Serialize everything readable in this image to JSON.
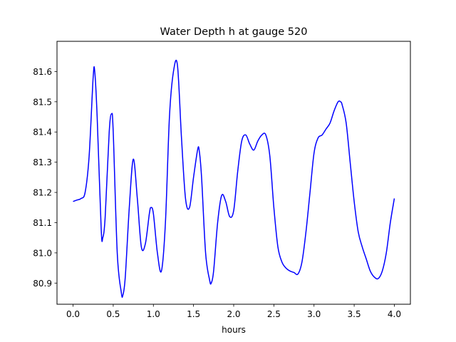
{
  "chart_data": {
    "type": "line",
    "title": "Water Depth h at gauge 520",
    "xlabel": "hours",
    "ylabel": "",
    "xlim": [
      -0.2,
      4.2
    ],
    "ylim": [
      80.83,
      81.7
    ],
    "xticks": [
      0.0,
      0.5,
      1.0,
      1.5,
      2.0,
      2.5,
      3.0,
      3.5,
      4.0
    ],
    "xtick_labels": [
      "0.0",
      "0.5",
      "1.0",
      "1.5",
      "2.0",
      "2.5",
      "3.0",
      "3.5",
      "4.0"
    ],
    "yticks": [
      80.9,
      81.0,
      81.1,
      81.2,
      81.3,
      81.4,
      81.5,
      81.6
    ],
    "ytick_labels": [
      "80.9",
      "81.0",
      "81.1",
      "81.2",
      "81.3",
      "81.4",
      "81.5",
      "81.6"
    ],
    "grid": false,
    "series": [
      {
        "color": "#0000ff",
        "x": [
          0.0,
          0.05,
          0.1,
          0.15,
          0.2,
          0.25,
          0.27,
          0.3,
          0.35,
          0.37,
          0.4,
          0.45,
          0.48,
          0.5,
          0.55,
          0.6,
          0.62,
          0.65,
          0.7,
          0.75,
          0.8,
          0.85,
          0.9,
          0.95,
          0.97,
          1.0,
          1.05,
          1.1,
          1.15,
          1.2,
          1.25,
          1.3,
          1.35,
          1.4,
          1.45,
          1.5,
          1.55,
          1.57,
          1.6,
          1.65,
          1.7,
          1.72,
          1.75,
          1.8,
          1.85,
          1.9,
          1.95,
          2.0,
          2.05,
          2.1,
          2.15,
          2.2,
          2.25,
          2.3,
          2.35,
          2.4,
          2.45,
          2.5,
          2.55,
          2.6,
          2.65,
          2.7,
          2.75,
          2.8,
          2.85,
          2.9,
          2.95,
          3.0,
          3.05,
          3.1,
          3.15,
          3.2,
          3.25,
          3.3,
          3.33,
          3.35,
          3.4,
          3.45,
          3.5,
          3.55,
          3.6,
          3.65,
          3.7,
          3.75,
          3.8,
          3.85,
          3.9,
          3.95,
          4.0
        ],
        "y": [
          81.17,
          81.175,
          81.18,
          81.2,
          81.32,
          81.58,
          81.6,
          81.45,
          81.08,
          81.05,
          81.12,
          81.4,
          81.46,
          81.4,
          81.0,
          80.87,
          80.86,
          80.92,
          81.15,
          81.31,
          81.18,
          81.02,
          81.03,
          81.13,
          81.15,
          81.13,
          81.0,
          80.94,
          81.1,
          81.45,
          81.6,
          81.62,
          81.38,
          81.18,
          81.15,
          81.25,
          81.34,
          81.34,
          81.25,
          81.0,
          80.91,
          80.9,
          80.94,
          81.1,
          81.19,
          81.17,
          81.12,
          81.14,
          81.27,
          81.37,
          81.39,
          81.36,
          81.34,
          81.37,
          81.39,
          81.39,
          81.32,
          81.15,
          81.02,
          80.97,
          80.95,
          80.94,
          80.935,
          80.93,
          80.97,
          81.07,
          81.2,
          81.33,
          81.38,
          81.39,
          81.41,
          81.43,
          81.47,
          81.5,
          81.5,
          81.49,
          81.43,
          81.3,
          81.17,
          81.07,
          81.02,
          80.98,
          80.94,
          80.92,
          80.915,
          80.94,
          81.0,
          81.1,
          81.18
        ]
      }
    ]
  }
}
